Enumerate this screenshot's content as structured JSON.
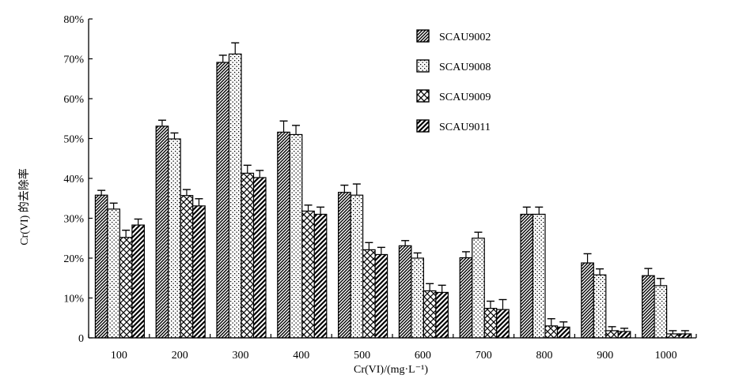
{
  "chart_data": {
    "type": "bar",
    "title": "",
    "xlabel": "Cr(VI)/(mg·L⁻¹)",
    "ylabel": "Cr(VI) 的去除率",
    "ylim": [
      0,
      80
    ],
    "yticks": [
      0,
      10,
      20,
      30,
      40,
      50,
      60,
      70,
      80
    ],
    "ytick_labels": [
      "0",
      "10%",
      "20%",
      "30%",
      "40%",
      "50%",
      "60%",
      "70%",
      "80%"
    ],
    "categories": [
      "100",
      "200",
      "300",
      "400",
      "500",
      "600",
      "700",
      "800",
      "900",
      "1000"
    ],
    "legend_position": "top-right",
    "error_bars": true,
    "series": [
      {
        "name": "SCAU9002",
        "pattern": "dense-diagonal",
        "values": [
          35.8,
          53.1,
          69.1,
          51.6,
          36.5,
          23.1,
          20.1,
          31.0,
          18.8,
          15.6
        ],
        "errors": [
          1.2,
          1.5,
          1.8,
          2.8,
          1.8,
          1.3,
          1.5,
          1.8,
          2.3,
          1.8
        ]
      },
      {
        "name": "SCAU9008",
        "pattern": "dots",
        "values": [
          32.3,
          49.9,
          71.2,
          51.0,
          35.8,
          20.0,
          25.0,
          31.0,
          15.8,
          13.1
        ],
        "errors": [
          1.5,
          1.5,
          2.8,
          2.3,
          2.8,
          1.3,
          1.5,
          1.8,
          1.5,
          1.8
        ]
      },
      {
        "name": "SCAU9009",
        "pattern": "crosshatch",
        "values": [
          25.2,
          35.7,
          41.3,
          31.8,
          22.1,
          11.8,
          7.4,
          3.0,
          1.8,
          1.0
        ],
        "errors": [
          1.8,
          1.5,
          2.0,
          1.5,
          1.8,
          1.8,
          1.8,
          1.8,
          1.0,
          0.8
        ]
      },
      {
        "name": "SCAU9011",
        "pattern": "wide-diagonal",
        "values": [
          28.3,
          33.1,
          40.2,
          31.0,
          20.9,
          11.4,
          7.1,
          2.7,
          1.6,
          1.0
        ],
        "errors": [
          1.5,
          1.8,
          1.8,
          1.8,
          1.8,
          1.8,
          2.5,
          1.3,
          0.8,
          0.8
        ]
      }
    ]
  }
}
